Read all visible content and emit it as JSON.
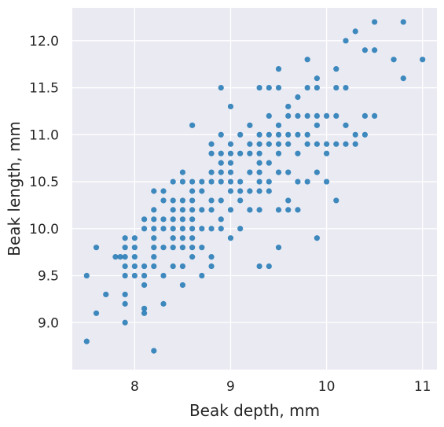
{
  "chart_data": {
    "type": "scatter",
    "xlabel": "Beak depth, mm",
    "ylabel": "Beak length, mm",
    "xlim": [
      7.35,
      11.15
    ],
    "ylim": [
      8.5,
      12.35
    ],
    "xticks": [
      8,
      9,
      10,
      11
    ],
    "xtick_labels": [
      "8",
      "9",
      "10",
      "11"
    ],
    "yticks": [
      9.0,
      9.5,
      10.0,
      10.5,
      11.0,
      11.5,
      12.0
    ],
    "ytick_labels": [
      "9.0",
      "9.5",
      "10.0",
      "10.5",
      "11.0",
      "11.5",
      "12.0"
    ],
    "grid": true,
    "background_color": "#eaeaf2",
    "grid_color": "#ffffff",
    "marker_color": "#1f77b4",
    "points": [
      [
        7.5,
        8.8
      ],
      [
        7.5,
        9.5
      ],
      [
        7.6,
        9.1
      ],
      [
        7.6,
        9.8
      ],
      [
        7.7,
        9.3
      ],
      [
        7.8,
        9.7
      ],
      [
        7.85,
        9.7
      ],
      [
        7.9,
        9.0
      ],
      [
        7.9,
        9.2
      ],
      [
        7.9,
        9.3
      ],
      [
        7.9,
        9.5
      ],
      [
        7.9,
        9.6
      ],
      [
        7.9,
        9.7
      ],
      [
        7.9,
        9.8
      ],
      [
        7.9,
        9.9
      ],
      [
        8.0,
        9.5
      ],
      [
        8.0,
        9.6
      ],
      [
        8.0,
        9.7
      ],
      [
        8.0,
        9.8
      ],
      [
        8.0,
        9.9
      ],
      [
        8.1,
        9.1
      ],
      [
        8.1,
        9.15
      ],
      [
        8.1,
        9.4
      ],
      [
        8.1,
        9.5
      ],
      [
        8.1,
        9.6
      ],
      [
        8.1,
        10.0
      ],
      [
        8.1,
        10.1
      ],
      [
        8.2,
        8.7
      ],
      [
        8.2,
        9.6
      ],
      [
        8.2,
        9.7
      ],
      [
        8.2,
        9.8
      ],
      [
        8.2,
        9.9
      ],
      [
        8.2,
        10.0
      ],
      [
        8.2,
        10.1
      ],
      [
        8.2,
        10.2
      ],
      [
        8.2,
        10.4
      ],
      [
        8.3,
        9.2
      ],
      [
        8.3,
        9.5
      ],
      [
        8.3,
        9.8
      ],
      [
        8.3,
        10.0
      ],
      [
        8.3,
        10.1
      ],
      [
        8.3,
        10.3
      ],
      [
        8.3,
        10.4
      ],
      [
        8.4,
        9.6
      ],
      [
        8.4,
        9.8
      ],
      [
        8.4,
        9.9
      ],
      [
        8.4,
        10.0
      ],
      [
        8.4,
        10.1
      ],
      [
        8.4,
        10.2
      ],
      [
        8.4,
        10.3
      ],
      [
        8.4,
        10.5
      ],
      [
        8.5,
        9.4
      ],
      [
        8.5,
        9.6
      ],
      [
        8.5,
        9.8
      ],
      [
        8.5,
        9.9
      ],
      [
        8.5,
        10.0
      ],
      [
        8.5,
        10.1
      ],
      [
        8.5,
        10.2
      ],
      [
        8.5,
        10.3
      ],
      [
        8.5,
        10.5
      ],
      [
        8.5,
        10.6
      ],
      [
        8.6,
        9.7
      ],
      [
        8.6,
        9.8
      ],
      [
        8.6,
        9.9
      ],
      [
        8.6,
        10.0
      ],
      [
        8.6,
        10.1
      ],
      [
        8.6,
        10.2
      ],
      [
        8.6,
        10.3
      ],
      [
        8.6,
        10.4
      ],
      [
        8.6,
        10.5
      ],
      [
        8.6,
        11.1
      ],
      [
        8.7,
        9.5
      ],
      [
        8.7,
        9.8
      ],
      [
        8.7,
        10.0
      ],
      [
        8.7,
        10.2
      ],
      [
        8.7,
        10.4
      ],
      [
        8.7,
        10.5
      ],
      [
        8.8,
        9.6
      ],
      [
        8.8,
        9.7
      ],
      [
        8.8,
        10.0
      ],
      [
        8.8,
        10.2
      ],
      [
        8.8,
        10.3
      ],
      [
        8.8,
        10.5
      ],
      [
        8.8,
        10.6
      ],
      [
        8.8,
        10.8
      ],
      [
        8.8,
        10.9
      ],
      [
        8.9,
        10.0
      ],
      [
        8.9,
        10.1
      ],
      [
        8.9,
        10.3
      ],
      [
        8.9,
        10.5
      ],
      [
        8.9,
        10.6
      ],
      [
        8.9,
        10.7
      ],
      [
        8.9,
        10.8
      ],
      [
        8.9,
        11.0
      ],
      [
        8.9,
        11.5
      ],
      [
        9.0,
        9.9
      ],
      [
        9.0,
        10.2
      ],
      [
        9.0,
        10.4
      ],
      [
        9.0,
        10.5
      ],
      [
        9.0,
        10.6
      ],
      [
        9.0,
        10.7
      ],
      [
        9.0,
        10.8
      ],
      [
        9.0,
        10.9
      ],
      [
        9.0,
        11.3
      ],
      [
        9.1,
        10.0
      ],
      [
        9.1,
        10.3
      ],
      [
        9.1,
        10.4
      ],
      [
        9.1,
        10.5
      ],
      [
        9.1,
        10.8
      ],
      [
        9.1,
        11.0
      ],
      [
        9.2,
        10.2
      ],
      [
        9.2,
        10.4
      ],
      [
        9.2,
        10.6
      ],
      [
        9.2,
        10.8
      ],
      [
        9.2,
        10.9
      ],
      [
        9.2,
        11.1
      ],
      [
        9.3,
        9.6
      ],
      [
        9.3,
        10.2
      ],
      [
        9.3,
        10.4
      ],
      [
        9.3,
        10.5
      ],
      [
        9.3,
        10.6
      ],
      [
        9.3,
        10.7
      ],
      [
        9.3,
        10.8
      ],
      [
        9.3,
        10.9
      ],
      [
        9.3,
        11.0
      ],
      [
        9.3,
        11.5
      ],
      [
        9.4,
        9.6
      ],
      [
        9.4,
        10.4
      ],
      [
        9.4,
        10.5
      ],
      [
        9.4,
        10.7
      ],
      [
        9.4,
        10.9
      ],
      [
        9.4,
        11.0
      ],
      [
        9.4,
        11.2
      ],
      [
        9.4,
        11.5
      ],
      [
        9.5,
        9.8
      ],
      [
        9.5,
        10.2
      ],
      [
        9.5,
        10.6
      ],
      [
        9.5,
        10.8
      ],
      [
        9.5,
        10.9
      ],
      [
        9.5,
        11.0
      ],
      [
        9.5,
        11.1
      ],
      [
        9.5,
        11.5
      ],
      [
        9.5,
        11.7
      ],
      [
        9.6,
        10.2
      ],
      [
        9.6,
        10.3
      ],
      [
        9.6,
        10.6
      ],
      [
        9.6,
        10.9
      ],
      [
        9.6,
        11.0
      ],
      [
        9.6,
        11.2
      ],
      [
        9.6,
        11.3
      ],
      [
        9.7,
        10.2
      ],
      [
        9.7,
        10.5
      ],
      [
        9.7,
        10.8
      ],
      [
        9.7,
        11.0
      ],
      [
        9.7,
        11.2
      ],
      [
        9.7,
        11.4
      ],
      [
        9.8,
        10.5
      ],
      [
        9.8,
        10.9
      ],
      [
        9.8,
        11.0
      ],
      [
        9.8,
        11.2
      ],
      [
        9.8,
        11.5
      ],
      [
        9.8,
        11.8
      ],
      [
        9.9,
        9.9
      ],
      [
        9.9,
        10.6
      ],
      [
        9.9,
        10.9
      ],
      [
        9.9,
        11.1
      ],
      [
        9.9,
        11.2
      ],
      [
        9.9,
        11.5
      ],
      [
        9.9,
        11.6
      ],
      [
        10.0,
        10.5
      ],
      [
        10.0,
        10.8
      ],
      [
        10.0,
        10.9
      ],
      [
        10.0,
        11.2
      ],
      [
        10.1,
        10.3
      ],
      [
        10.1,
        10.9
      ],
      [
        10.1,
        11.2
      ],
      [
        10.1,
        11.5
      ],
      [
        10.1,
        11.7
      ],
      [
        10.2,
        10.9
      ],
      [
        10.2,
        11.1
      ],
      [
        10.2,
        11.5
      ],
      [
        10.2,
        12.0
      ],
      [
        10.3,
        10.9
      ],
      [
        10.3,
        11.0
      ],
      [
        10.3,
        12.1
      ],
      [
        10.4,
        11.0
      ],
      [
        10.4,
        11.2
      ],
      [
        10.4,
        11.9
      ],
      [
        10.5,
        11.2
      ],
      [
        10.5,
        11.9
      ],
      [
        10.5,
        12.2
      ],
      [
        10.7,
        11.8
      ],
      [
        10.8,
        12.2
      ],
      [
        10.8,
        11.6
      ],
      [
        11.0,
        11.8
      ]
    ]
  }
}
